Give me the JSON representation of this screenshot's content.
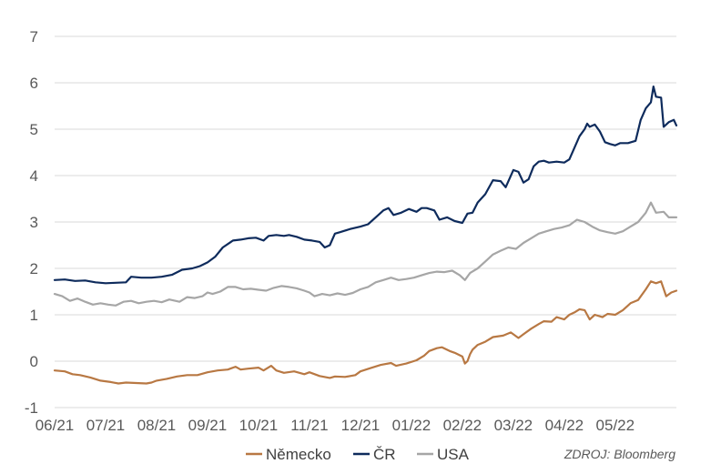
{
  "chart_data": {
    "type": "line",
    "ylim": [
      -1,
      7
    ],
    "yticks": [
      "-1",
      "0",
      "1",
      "2",
      "3",
      "4",
      "5",
      "6",
      "7"
    ],
    "xlim": [
      0,
      12.2
    ],
    "xticks": [
      {
        "label": "06/21",
        "x": 0
      },
      {
        "label": "07/21",
        "x": 1
      },
      {
        "label": "08/21",
        "x": 2
      },
      {
        "label": "09/21",
        "x": 3
      },
      {
        "label": "10/21",
        "x": 4
      },
      {
        "label": "11/21",
        "x": 5
      },
      {
        "label": "12/21",
        "x": 6
      },
      {
        "label": "01/22",
        "x": 7
      },
      {
        "label": "02/22",
        "x": 8
      },
      {
        "label": "03/22",
        "x": 9
      },
      {
        "label": "04/22",
        "x": 10
      },
      {
        "label": "05/22",
        "x": 11
      }
    ],
    "grid": true,
    "legend": "bottom",
    "series": [
      {
        "name": "Německo",
        "color": "#B87843",
        "points": [
          [
            0,
            -0.2
          ],
          [
            0.2,
            -0.22
          ],
          [
            0.35,
            -0.28
          ],
          [
            0.5,
            -0.3
          ],
          [
            0.7,
            -0.35
          ],
          [
            0.9,
            -0.42
          ],
          [
            1.1,
            -0.45
          ],
          [
            1.25,
            -0.48
          ],
          [
            1.4,
            -0.46
          ],
          [
            1.6,
            -0.47
          ],
          [
            1.8,
            -0.48
          ],
          [
            1.9,
            -0.46
          ],
          [
            2.0,
            -0.42
          ],
          [
            2.2,
            -0.38
          ],
          [
            2.4,
            -0.33
          ],
          [
            2.6,
            -0.3
          ],
          [
            2.8,
            -0.3
          ],
          [
            3.0,
            -0.24
          ],
          [
            3.2,
            -0.2
          ],
          [
            3.4,
            -0.18
          ],
          [
            3.55,
            -0.12
          ],
          [
            3.65,
            -0.18
          ],
          [
            3.8,
            -0.16
          ],
          [
            4.0,
            -0.14
          ],
          [
            4.1,
            -0.2
          ],
          [
            4.25,
            -0.1
          ],
          [
            4.35,
            -0.2
          ],
          [
            4.5,
            -0.25
          ],
          [
            4.7,
            -0.22
          ],
          [
            4.9,
            -0.28
          ],
          [
            5.0,
            -0.24
          ],
          [
            5.2,
            -0.32
          ],
          [
            5.4,
            -0.36
          ],
          [
            5.5,
            -0.33
          ],
          [
            5.7,
            -0.34
          ],
          [
            5.9,
            -0.3
          ],
          [
            6.0,
            -0.22
          ],
          [
            6.2,
            -0.15
          ],
          [
            6.4,
            -0.08
          ],
          [
            6.6,
            -0.04
          ],
          [
            6.7,
            -0.1
          ],
          [
            6.9,
            -0.05
          ],
          [
            7.1,
            0.02
          ],
          [
            7.25,
            0.12
          ],
          [
            7.35,
            0.22
          ],
          [
            7.5,
            0.28
          ],
          [
            7.6,
            0.3
          ],
          [
            7.75,
            0.22
          ],
          [
            7.85,
            0.18
          ],
          [
            8.0,
            0.1
          ],
          [
            8.05,
            -0.05
          ],
          [
            8.1,
            0.0
          ],
          [
            8.15,
            0.15
          ],
          [
            8.2,
            0.25
          ],
          [
            8.3,
            0.35
          ],
          [
            8.45,
            0.42
          ],
          [
            8.6,
            0.52
          ],
          [
            8.8,
            0.55
          ],
          [
            8.95,
            0.62
          ],
          [
            9.1,
            0.5
          ],
          [
            9.2,
            0.58
          ],
          [
            9.35,
            0.7
          ],
          [
            9.5,
            0.8
          ],
          [
            9.6,
            0.86
          ],
          [
            9.75,
            0.85
          ],
          [
            9.85,
            0.95
          ],
          [
            10.0,
            0.9
          ],
          [
            10.1,
            1.0
          ],
          [
            10.2,
            1.05
          ],
          [
            10.3,
            1.12
          ],
          [
            10.4,
            1.1
          ],
          [
            10.5,
            0.9
          ],
          [
            10.6,
            1.0
          ],
          [
            10.75,
            0.95
          ],
          [
            10.85,
            1.02
          ],
          [
            11.0,
            1.0
          ],
          [
            11.15,
            1.1
          ],
          [
            11.3,
            1.25
          ],
          [
            11.45,
            1.32
          ],
          [
            11.6,
            1.55
          ],
          [
            11.7,
            1.72
          ],
          [
            11.8,
            1.68
          ],
          [
            11.9,
            1.72
          ],
          [
            12.0,
            1.4
          ],
          [
            12.1,
            1.48
          ],
          [
            12.2,
            1.52
          ]
        ]
      },
      {
        "name": "ČR",
        "color": "#0E2B5C",
        "points": [
          [
            0,
            1.75
          ],
          [
            0.2,
            1.76
          ],
          [
            0.4,
            1.73
          ],
          [
            0.6,
            1.74
          ],
          [
            0.8,
            1.7
          ],
          [
            1.0,
            1.68
          ],
          [
            1.2,
            1.69
          ],
          [
            1.4,
            1.7
          ],
          [
            1.5,
            1.82
          ],
          [
            1.7,
            1.8
          ],
          [
            1.9,
            1.8
          ],
          [
            2.1,
            1.82
          ],
          [
            2.3,
            1.86
          ],
          [
            2.5,
            1.97
          ],
          [
            2.7,
            2.0
          ],
          [
            2.85,
            2.05
          ],
          [
            3.0,
            2.13
          ],
          [
            3.15,
            2.25
          ],
          [
            3.3,
            2.45
          ],
          [
            3.5,
            2.6
          ],
          [
            3.65,
            2.62
          ],
          [
            3.8,
            2.65
          ],
          [
            3.95,
            2.66
          ],
          [
            4.1,
            2.6
          ],
          [
            4.2,
            2.7
          ],
          [
            4.35,
            2.72
          ],
          [
            4.5,
            2.7
          ],
          [
            4.6,
            2.72
          ],
          [
            4.75,
            2.68
          ],
          [
            4.9,
            2.62
          ],
          [
            5.05,
            2.6
          ],
          [
            5.2,
            2.57
          ],
          [
            5.3,
            2.45
          ],
          [
            5.4,
            2.5
          ],
          [
            5.5,
            2.75
          ],
          [
            5.6,
            2.78
          ],
          [
            5.8,
            2.85
          ],
          [
            6.0,
            2.9
          ],
          [
            6.15,
            2.95
          ],
          [
            6.3,
            3.1
          ],
          [
            6.45,
            3.25
          ],
          [
            6.55,
            3.3
          ],
          [
            6.65,
            3.15
          ],
          [
            6.8,
            3.2
          ],
          [
            6.95,
            3.28
          ],
          [
            7.1,
            3.22
          ],
          [
            7.2,
            3.3
          ],
          [
            7.3,
            3.3
          ],
          [
            7.45,
            3.25
          ],
          [
            7.55,
            3.05
          ],
          [
            7.7,
            3.1
          ],
          [
            7.85,
            3.02
          ],
          [
            8.0,
            2.98
          ],
          [
            8.1,
            3.18
          ],
          [
            8.2,
            3.2
          ],
          [
            8.3,
            3.42
          ],
          [
            8.45,
            3.6
          ],
          [
            8.6,
            3.9
          ],
          [
            8.75,
            3.88
          ],
          [
            8.85,
            3.75
          ],
          [
            9.0,
            4.12
          ],
          [
            9.1,
            4.08
          ],
          [
            9.2,
            3.85
          ],
          [
            9.3,
            3.92
          ],
          [
            9.4,
            4.2
          ],
          [
            9.5,
            4.3
          ],
          [
            9.6,
            4.32
          ],
          [
            9.7,
            4.28
          ],
          [
            9.85,
            4.3
          ],
          [
            10.0,
            4.28
          ],
          [
            10.1,
            4.35
          ],
          [
            10.2,
            4.6
          ],
          [
            10.3,
            4.85
          ],
          [
            10.4,
            5.0
          ],
          [
            10.45,
            5.12
          ],
          [
            10.5,
            5.05
          ],
          [
            10.6,
            5.1
          ],
          [
            10.7,
            4.95
          ],
          [
            10.8,
            4.72
          ],
          [
            10.9,
            4.68
          ],
          [
            11.0,
            4.65
          ],
          [
            11.1,
            4.7
          ],
          [
            11.25,
            4.7
          ],
          [
            11.4,
            4.75
          ],
          [
            11.5,
            5.2
          ],
          [
            11.6,
            5.45
          ],
          [
            11.7,
            5.58
          ],
          [
            11.75,
            5.92
          ],
          [
            11.8,
            5.7
          ],
          [
            11.9,
            5.68
          ],
          [
            11.95,
            5.05
          ],
          [
            12.05,
            5.15
          ],
          [
            12.15,
            5.2
          ],
          [
            12.2,
            5.08
          ]
        ]
      },
      {
        "name": "USA",
        "color": "#A6A6A6",
        "points": [
          [
            0,
            1.45
          ],
          [
            0.15,
            1.4
          ],
          [
            0.3,
            1.3
          ],
          [
            0.45,
            1.35
          ],
          [
            0.6,
            1.28
          ],
          [
            0.75,
            1.22
          ],
          [
            0.9,
            1.25
          ],
          [
            1.05,
            1.22
          ],
          [
            1.2,
            1.2
          ],
          [
            1.35,
            1.28
          ],
          [
            1.5,
            1.3
          ],
          [
            1.65,
            1.25
          ],
          [
            1.8,
            1.28
          ],
          [
            1.95,
            1.3
          ],
          [
            2.1,
            1.27
          ],
          [
            2.25,
            1.33
          ],
          [
            2.45,
            1.28
          ],
          [
            2.6,
            1.38
          ],
          [
            2.75,
            1.36
          ],
          [
            2.9,
            1.4
          ],
          [
            3.0,
            1.48
          ],
          [
            3.1,
            1.45
          ],
          [
            3.25,
            1.5
          ],
          [
            3.4,
            1.6
          ],
          [
            3.55,
            1.6
          ],
          [
            3.7,
            1.55
          ],
          [
            3.85,
            1.56
          ],
          [
            4.0,
            1.54
          ],
          [
            4.15,
            1.52
          ],
          [
            4.3,
            1.58
          ],
          [
            4.45,
            1.62
          ],
          [
            4.6,
            1.6
          ],
          [
            4.75,
            1.57
          ],
          [
            4.9,
            1.52
          ],
          [
            5.0,
            1.48
          ],
          [
            5.1,
            1.4
          ],
          [
            5.25,
            1.45
          ],
          [
            5.4,
            1.42
          ],
          [
            5.55,
            1.46
          ],
          [
            5.7,
            1.43
          ],
          [
            5.85,
            1.47
          ],
          [
            6.0,
            1.55
          ],
          [
            6.15,
            1.6
          ],
          [
            6.3,
            1.7
          ],
          [
            6.45,
            1.75
          ],
          [
            6.6,
            1.8
          ],
          [
            6.75,
            1.75
          ],
          [
            6.9,
            1.77
          ],
          [
            7.05,
            1.8
          ],
          [
            7.2,
            1.85
          ],
          [
            7.35,
            1.9
          ],
          [
            7.5,
            1.93
          ],
          [
            7.65,
            1.92
          ],
          [
            7.8,
            1.95
          ],
          [
            7.95,
            1.85
          ],
          [
            8.05,
            1.75
          ],
          [
            8.15,
            1.9
          ],
          [
            8.3,
            2.0
          ],
          [
            8.45,
            2.15
          ],
          [
            8.6,
            2.3
          ],
          [
            8.75,
            2.38
          ],
          [
            8.9,
            2.45
          ],
          [
            9.05,
            2.42
          ],
          [
            9.2,
            2.55
          ],
          [
            9.35,
            2.65
          ],
          [
            9.5,
            2.75
          ],
          [
            9.65,
            2.8
          ],
          [
            9.8,
            2.85
          ],
          [
            9.95,
            2.88
          ],
          [
            10.1,
            2.93
          ],
          [
            10.25,
            3.05
          ],
          [
            10.4,
            3.0
          ],
          [
            10.55,
            2.9
          ],
          [
            10.7,
            2.82
          ],
          [
            10.85,
            2.78
          ],
          [
            11.0,
            2.75
          ],
          [
            11.15,
            2.8
          ],
          [
            11.3,
            2.9
          ],
          [
            11.45,
            3.0
          ],
          [
            11.6,
            3.2
          ],
          [
            11.7,
            3.42
          ],
          [
            11.8,
            3.2
          ],
          [
            11.95,
            3.22
          ],
          [
            12.05,
            3.1
          ],
          [
            12.2,
            3.1
          ]
        ]
      }
    ]
  },
  "source": "ZDROJ: Bloomberg"
}
